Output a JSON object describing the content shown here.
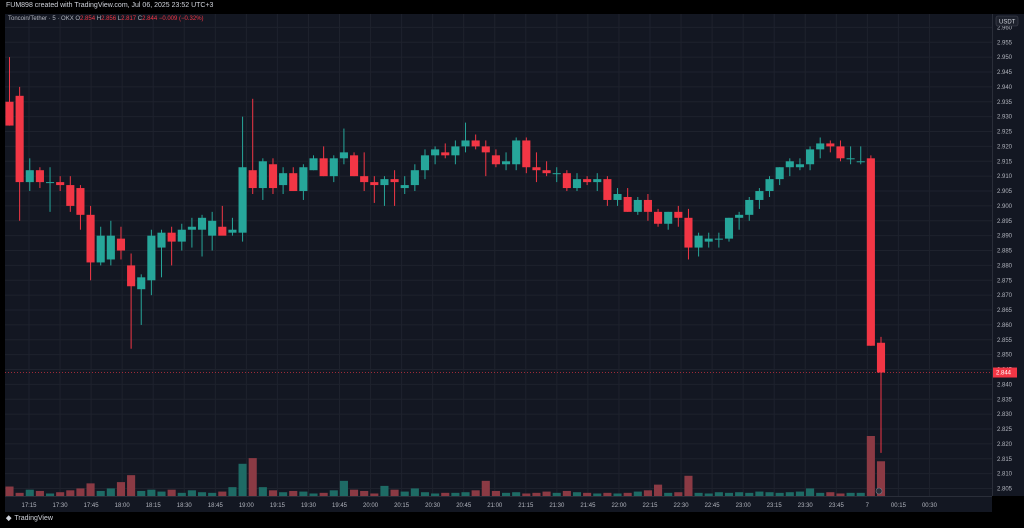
{
  "header": {
    "caption": "FUM898 created with TradingView.com, Jul 06, 2025 23:52 UTC+3"
  },
  "legend": {
    "symbol": "Toncoin/Tether · 5 · OKX",
    "o_label": "O",
    "o": "2.854",
    "h_label": "H",
    "h": "2.856",
    "l_label": "L",
    "l": "2.817",
    "c_label": "C",
    "c": "2.844",
    "change": "−0.009 (−0.32%)"
  },
  "footer": {
    "brand": "TradingView"
  },
  "colors": {
    "up": "#26a69a",
    "down": "#f23645",
    "up_vol": "#1e6b65",
    "down_vol": "#8b3a44",
    "grid": "#1e222d",
    "text": "#b2b5be"
  },
  "chart_data": {
    "type": "candlestick",
    "quote_currency": "USDT",
    "last_price": "2.844",
    "price_ticks": [
      "2.960",
      "2.955",
      "2.950",
      "2.945",
      "2.940",
      "2.935",
      "2.930",
      "2.925",
      "2.920",
      "2.915",
      "2.910",
      "2.905",
      "2.900",
      "2.895",
      "2.890",
      "2.885",
      "2.880",
      "2.875",
      "2.870",
      "2.865",
      "2.860",
      "2.855",
      "2.850",
      "2.845",
      "2.840",
      "2.835",
      "2.830",
      "2.825",
      "2.820",
      "2.815",
      "2.810",
      "2.805"
    ],
    "time_ticks": [
      "17:15",
      "17:30",
      "17:45",
      "18:00",
      "18:15",
      "18:30",
      "18:45",
      "19:00",
      "19:15",
      "19:30",
      "19:45",
      "20:00",
      "20:15",
      "20:30",
      "20:45",
      "21:00",
      "21:15",
      "21:30",
      "21:45",
      "22:00",
      "22:15",
      "22:30",
      "22:45",
      "23:00",
      "23:15",
      "23:30",
      "23:45",
      "7",
      "00:15",
      "00:30"
    ],
    "ylim": [
      2.8025,
      2.9645
    ],
    "grid": true,
    "candles": [
      {
        "o": 2.935,
        "h": 2.95,
        "l": 2.927,
        "c": 2.927,
        "v": 15
      },
      {
        "o": 2.937,
        "h": 2.94,
        "l": 2.895,
        "c": 2.908,
        "v": 5
      },
      {
        "o": 2.908,
        "h": 2.916,
        "l": 2.905,
        "c": 2.912,
        "v": 10
      },
      {
        "o": 2.912,
        "h": 2.913,
        "l": 2.906,
        "c": 2.908,
        "v": 8
      },
      {
        "o": 2.908,
        "h": 2.913,
        "l": 2.898,
        "c": 2.908,
        "v": 4
      },
      {
        "o": 2.908,
        "h": 2.91,
        "l": 2.905,
        "c": 2.907,
        "v": 6
      },
      {
        "o": 2.907,
        "h": 2.91,
        "l": 2.898,
        "c": 2.9,
        "v": 9
      },
      {
        "o": 2.906,
        "h": 2.907,
        "l": 2.892,
        "c": 2.897,
        "v": 12
      },
      {
        "o": 2.897,
        "h": 2.9,
        "l": 2.875,
        "c": 2.881,
        "v": 20
      },
      {
        "o": 2.881,
        "h": 2.893,
        "l": 2.88,
        "c": 2.89,
        "v": 8
      },
      {
        "o": 2.882,
        "h": 2.895,
        "l": 2.88,
        "c": 2.89,
        "v": 12
      },
      {
        "o": 2.889,
        "h": 2.893,
        "l": 2.882,
        "c": 2.885,
        "v": 22
      },
      {
        "o": 2.88,
        "h": 2.884,
        "l": 2.852,
        "c": 2.873,
        "v": 33
      },
      {
        "o": 2.872,
        "h": 2.877,
        "l": 2.86,
        "c": 2.876,
        "v": 8
      },
      {
        "o": 2.875,
        "h": 2.892,
        "l": 2.87,
        "c": 2.89,
        "v": 10
      },
      {
        "o": 2.886,
        "h": 2.892,
        "l": 2.876,
        "c": 2.891,
        "v": 7
      },
      {
        "o": 2.891,
        "h": 2.893,
        "l": 2.88,
        "c": 2.888,
        "v": 10
      },
      {
        "o": 2.888,
        "h": 2.894,
        "l": 2.885,
        "c": 2.892,
        "v": 5
      },
      {
        "o": 2.892,
        "h": 2.896,
        "l": 2.886,
        "c": 2.893,
        "v": 9
      },
      {
        "o": 2.892,
        "h": 2.897,
        "l": 2.883,
        "c": 2.896,
        "v": 6
      },
      {
        "o": 2.89,
        "h": 2.898,
        "l": 2.885,
        "c": 2.895,
        "v": 5
      },
      {
        "o": 2.893,
        "h": 2.9,
        "l": 2.891,
        "c": 2.89,
        "v": 7
      },
      {
        "o": 2.891,
        "h": 2.896,
        "l": 2.89,
        "c": 2.892,
        "v": 14
      },
      {
        "o": 2.891,
        "h": 2.93,
        "l": 2.888,
        "c": 2.913,
        "v": 51
      },
      {
        "o": 2.912,
        "h": 2.936,
        "l": 2.904,
        "c": 2.906,
        "v": 60
      },
      {
        "o": 2.906,
        "h": 2.916,
        "l": 2.902,
        "c": 2.915,
        "v": 14
      },
      {
        "o": 2.914,
        "h": 2.916,
        "l": 2.904,
        "c": 2.906,
        "v": 9
      },
      {
        "o": 2.907,
        "h": 2.913,
        "l": 2.904,
        "c": 2.911,
        "v": 6
      },
      {
        "o": 2.911,
        "h": 2.913,
        "l": 2.905,
        "c": 2.905,
        "v": 8
      },
      {
        "o": 2.905,
        "h": 2.914,
        "l": 2.902,
        "c": 2.913,
        "v": 7
      },
      {
        "o": 2.912,
        "h": 2.917,
        "l": 2.912,
        "c": 2.916,
        "v": 4
      },
      {
        "o": 2.916,
        "h": 2.92,
        "l": 2.91,
        "c": 2.91,
        "v": 5
      },
      {
        "o": 2.91,
        "h": 2.917,
        "l": 2.908,
        "c": 2.916,
        "v": 9
      },
      {
        "o": 2.916,
        "h": 2.926,
        "l": 2.914,
        "c": 2.918,
        "v": 24
      },
      {
        "o": 2.917,
        "h": 2.918,
        "l": 2.91,
        "c": 2.91,
        "v": 10
      },
      {
        "o": 2.91,
        "h": 2.918,
        "l": 2.905,
        "c": 2.908,
        "v": 8
      },
      {
        "o": 2.908,
        "h": 2.91,
        "l": 2.901,
        "c": 2.907,
        "v": 4
      },
      {
        "o": 2.907,
        "h": 2.91,
        "l": 2.9,
        "c": 2.909,
        "v": 16
      },
      {
        "o": 2.909,
        "h": 2.912,
        "l": 2.9,
        "c": 2.908,
        "v": 10
      },
      {
        "o": 2.906,
        "h": 2.91,
        "l": 2.904,
        "c": 2.907,
        "v": 7
      },
      {
        "o": 2.907,
        "h": 2.914,
        "l": 2.905,
        "c": 2.912,
        "v": 12
      },
      {
        "o": 2.912,
        "h": 2.919,
        "l": 2.909,
        "c": 2.917,
        "v": 6
      },
      {
        "o": 2.917,
        "h": 2.92,
        "l": 2.914,
        "c": 2.919,
        "v": 4
      },
      {
        "o": 2.918,
        "h": 2.921,
        "l": 2.916,
        "c": 2.917,
        "v": 5
      },
      {
        "o": 2.917,
        "h": 2.922,
        "l": 2.914,
        "c": 2.92,
        "v": 5
      },
      {
        "o": 2.92,
        "h": 2.928,
        "l": 2.918,
        "c": 2.922,
        "v": 6
      },
      {
        "o": 2.922,
        "h": 2.924,
        "l": 2.919,
        "c": 2.92,
        "v": 9
      },
      {
        "o": 2.92,
        "h": 2.922,
        "l": 2.91,
        "c": 2.918,
        "v": 24
      },
      {
        "o": 2.917,
        "h": 2.919,
        "l": 2.913,
        "c": 2.914,
        "v": 8
      },
      {
        "o": 2.914,
        "h": 2.918,
        "l": 2.912,
        "c": 2.915,
        "v": 5
      },
      {
        "o": 2.914,
        "h": 2.923,
        "l": 2.912,
        "c": 2.922,
        "v": 6
      },
      {
        "o": 2.922,
        "h": 2.923,
        "l": 2.911,
        "c": 2.913,
        "v": 4
      },
      {
        "o": 2.913,
        "h": 2.918,
        "l": 2.908,
        "c": 2.912,
        "v": 5
      },
      {
        "o": 2.912,
        "h": 2.915,
        "l": 2.91,
        "c": 2.911,
        "v": 7
      },
      {
        "o": 2.911,
        "h": 2.913,
        "l": 2.908,
        "c": 2.911,
        "v": 5
      },
      {
        "o": 2.911,
        "h": 2.912,
        "l": 2.905,
        "c": 2.906,
        "v": 8
      },
      {
        "o": 2.906,
        "h": 2.911,
        "l": 2.905,
        "c": 2.909,
        "v": 6
      },
      {
        "o": 2.909,
        "h": 2.91,
        "l": 2.907,
        "c": 2.908,
        "v": 5
      },
      {
        "o": 2.908,
        "h": 2.911,
        "l": 2.905,
        "c": 2.909,
        "v": 4
      },
      {
        "o": 2.909,
        "h": 2.91,
        "l": 2.9,
        "c": 2.902,
        "v": 5
      },
      {
        "o": 2.902,
        "h": 2.906,
        "l": 2.9,
        "c": 2.904,
        "v": 4
      },
      {
        "o": 2.903,
        "h": 2.906,
        "l": 2.898,
        "c": 2.898,
        "v": 5
      },
      {
        "o": 2.898,
        "h": 2.903,
        "l": 2.897,
        "c": 2.902,
        "v": 7
      },
      {
        "o": 2.902,
        "h": 2.904,
        "l": 2.895,
        "c": 2.898,
        "v": 9
      },
      {
        "o": 2.898,
        "h": 2.899,
        "l": 2.893,
        "c": 2.894,
        "v": 18
      },
      {
        "o": 2.894,
        "h": 2.898,
        "l": 2.892,
        "c": 2.898,
        "v": 5
      },
      {
        "o": 2.898,
        "h": 2.9,
        "l": 2.893,
        "c": 2.896,
        "v": 6
      },
      {
        "o": 2.896,
        "h": 2.899,
        "l": 2.882,
        "c": 2.886,
        "v": 32
      },
      {
        "o": 2.886,
        "h": 2.891,
        "l": 2.883,
        "c": 2.89,
        "v": 5
      },
      {
        "o": 2.888,
        "h": 2.891,
        "l": 2.886,
        "c": 2.889,
        "v": 4
      },
      {
        "o": 2.889,
        "h": 2.891,
        "l": 2.886,
        "c": 2.889,
        "v": 6
      },
      {
        "o": 2.889,
        "h": 2.896,
        "l": 2.888,
        "c": 2.896,
        "v": 5
      },
      {
        "o": 2.896,
        "h": 2.898,
        "l": 2.892,
        "c": 2.897,
        "v": 6
      },
      {
        "o": 2.897,
        "h": 2.903,
        "l": 2.895,
        "c": 2.902,
        "v": 5
      },
      {
        "o": 2.902,
        "h": 2.906,
        "l": 2.899,
        "c": 2.905,
        "v": 7
      },
      {
        "o": 2.905,
        "h": 2.91,
        "l": 2.903,
        "c": 2.909,
        "v": 6
      },
      {
        "o": 2.909,
        "h": 2.913,
        "l": 2.907,
        "c": 2.913,
        "v": 5
      },
      {
        "o": 2.913,
        "h": 2.916,
        "l": 2.91,
        "c": 2.915,
        "v": 6
      },
      {
        "o": 2.913,
        "h": 2.916,
        "l": 2.912,
        "c": 2.914,
        "v": 7
      },
      {
        "o": 2.914,
        "h": 2.92,
        "l": 2.912,
        "c": 2.919,
        "v": 12
      },
      {
        "o": 2.919,
        "h": 2.923,
        "l": 2.916,
        "c": 2.921,
        "v": 5
      },
      {
        "o": 2.921,
        "h": 2.922,
        "l": 2.918,
        "c": 2.92,
        "v": 6
      },
      {
        "o": 2.92,
        "h": 2.922,
        "l": 2.915,
        "c": 2.916,
        "v": 4
      },
      {
        "o": 2.916,
        "h": 2.92,
        "l": 2.914,
        "c": 2.916,
        "v": 5
      },
      {
        "o": 2.915,
        "h": 2.92,
        "l": 2.914,
        "c": 2.915,
        "v": 5
      },
      {
        "o": 2.916,
        "h": 2.917,
        "l": 2.853,
        "c": 2.853,
        "v": 95
      },
      {
        "o": 2.854,
        "h": 2.856,
        "l": 2.817,
        "c": 2.844,
        "v": 55
      }
    ]
  }
}
